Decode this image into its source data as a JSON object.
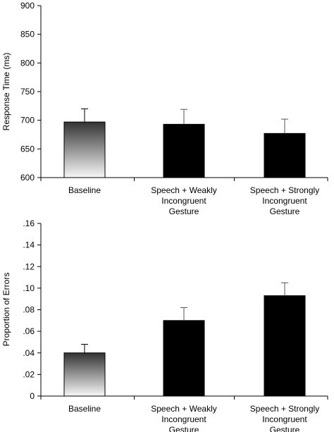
{
  "colors": {
    "bar_fill": "#000000",
    "baseline_gradient_top": "#333333",
    "baseline_gradient_bottom": "#f7f7f7",
    "axis": "#000000"
  },
  "chart_data": [
    {
      "type": "bar",
      "ylabel": "Response Time (ms)",
      "xlabel": "",
      "ylim": [
        600,
        900
      ],
      "yticks": [
        "600",
        "650",
        "700",
        "750",
        "800",
        "850",
        "900"
      ],
      "ytick_values": [
        600,
        650,
        700,
        750,
        800,
        850,
        900
      ],
      "categories": [
        [
          "Baseline"
        ],
        [
          "Speech + Weakly",
          "Incongruent",
          "Gesture"
        ],
        [
          "Speech + Strongly",
          "Incongruent",
          "Gesture"
        ]
      ],
      "values": [
        697,
        693,
        677
      ],
      "error": [
        23,
        26,
        25
      ],
      "grid": false,
      "legend": "none"
    },
    {
      "type": "bar",
      "ylabel": "Proportion of Errors",
      "xlabel": "",
      "ylim": [
        0,
        0.16
      ],
      "yticks": [
        "0",
        ".02",
        ".04",
        ".06",
        ".08",
        ".10",
        ".12",
        ".14",
        ".16"
      ],
      "ytick_values": [
        0,
        0.02,
        0.04,
        0.06,
        0.08,
        0.1,
        0.12,
        0.14,
        0.16
      ],
      "categories": [
        [
          "Baseline"
        ],
        [
          "Speech + Weakly",
          "Incongruent",
          "Gesture"
        ],
        [
          "Speech + Strongly",
          "Incongruent",
          "Gesture"
        ]
      ],
      "values": [
        0.04,
        0.07,
        0.093
      ],
      "error": [
        0.008,
        0.012,
        0.012
      ],
      "grid": false,
      "legend": "none"
    }
  ]
}
